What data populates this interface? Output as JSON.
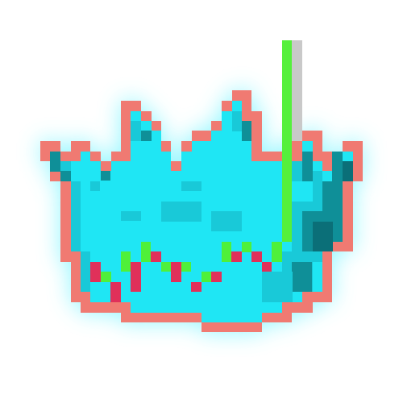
{
  "icon": {
    "name": "pixel-art-crown-icon",
    "colors": {
      "background": "#ffffff",
      "glow": "#7ff5ff",
      "outline": "#f07a72",
      "body_cyan": "#1fe6f4",
      "body_mid": "#19c9d8",
      "body_dark": "#0f8f98",
      "body_shadow": "#0b6f78",
      "stem_green": "#55f03c",
      "stem_grey": "#c9c9c9",
      "jewel_pink": "#e0305a",
      "jewel_green": "#4ff03a"
    }
  }
}
